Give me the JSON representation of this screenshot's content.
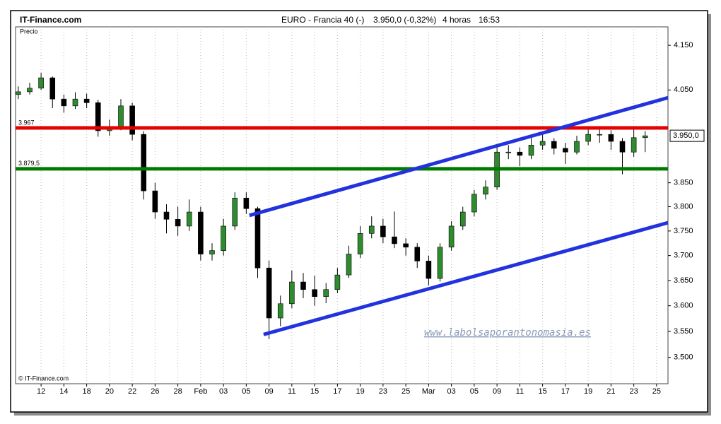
{
  "chart_data": {
    "type": "candlestick",
    "source": "IT-Finance.com",
    "title": "EURO - Francia 40 (-)",
    "price_change": "3.950,0 (-0,32%)",
    "timeframe": "4 horas",
    "time": "16:53",
    "y_label": "Precio",
    "copyright": "© IT-Finance.com",
    "watermark": "www.labolsaporantonomasia.es",
    "last_price_label": "3.950,0",
    "log_scale": true,
    "grid": "x",
    "up_color": "#2e8b2e",
    "down_color": "#000000",
    "ylim": [
      3450,
      4192
    ],
    "yticks": [
      {
        "value": 4150,
        "label": "4.150"
      },
      {
        "value": 4050,
        "label": "4.050"
      },
      {
        "value": 3850,
        "label": "3.850"
      },
      {
        "value": 3800,
        "label": "3.800"
      },
      {
        "value": 3750,
        "label": "3.750"
      },
      {
        "value": 3700,
        "label": "3.700"
      },
      {
        "value": 3650,
        "label": "3.650"
      },
      {
        "value": 3600,
        "label": "3.600"
      },
      {
        "value": 3550,
        "label": "3.550"
      },
      {
        "value": 3500,
        "label": "3.500"
      }
    ],
    "xlim": [
      -1.12,
      27.5
    ],
    "xticks": [
      {
        "value": 0,
        "label": "12"
      },
      {
        "value": 1,
        "label": "14"
      },
      {
        "value": 2,
        "label": "18"
      },
      {
        "value": 3,
        "label": "20"
      },
      {
        "value": 4,
        "label": "22"
      },
      {
        "value": 5,
        "label": "26"
      },
      {
        "value": 6,
        "label": "28"
      },
      {
        "value": 7,
        "label": "Feb"
      },
      {
        "value": 8,
        "label": "03"
      },
      {
        "value": 9,
        "label": "05"
      },
      {
        "value": 10,
        "label": "09"
      },
      {
        "value": 11,
        "label": "11"
      },
      {
        "value": 12,
        "label": "15"
      },
      {
        "value": 13,
        "label": "17"
      },
      {
        "value": 14,
        "label": "19"
      },
      {
        "value": 15,
        "label": "23"
      },
      {
        "value": 16,
        "label": "25"
      },
      {
        "value": 17,
        "label": "Mar"
      },
      {
        "value": 18,
        "label": "03"
      },
      {
        "value": 19,
        "label": "05"
      },
      {
        "value": 20,
        "label": "09"
      },
      {
        "value": 21,
        "label": "11"
      },
      {
        "value": 22,
        "label": "15"
      },
      {
        "value": 23,
        "label": "17"
      },
      {
        "value": 24,
        "label": "19"
      },
      {
        "value": 25,
        "label": "21"
      },
      {
        "value": 26,
        "label": "23"
      },
      {
        "value": 27,
        "label": "25"
      }
    ],
    "x": [
      -1,
      -0.5,
      0,
      0.5,
      1,
      1.5,
      2,
      2.5,
      3,
      3.5,
      4,
      4.5,
      5,
      5.5,
      6,
      6.5,
      7,
      7.5,
      8,
      8.5,
      9,
      9.5,
      10,
      10.5,
      11,
      11.5,
      12,
      12.5,
      13,
      13.5,
      14,
      14.5,
      15,
      15.5,
      16,
      16.5,
      17,
      17.5,
      18,
      18.5,
      19,
      19.5,
      20,
      20.5,
      21,
      21.5,
      22,
      22.5,
      23,
      23.5,
      24,
      24.5,
      25,
      25.5,
      26,
      26.5
    ],
    "open": [
      4040,
      4046,
      4054,
      4077,
      4030,
      4015,
      4030,
      4022,
      3961,
      3969,
      4015,
      3953,
      3833,
      3789,
      3774,
      3760,
      3789,
      3703,
      3710,
      3760,
      3818,
      3796,
      3675,
      3576,
      3604,
      3647,
      3632,
      3618,
      3632,
      3661,
      3703,
      3745,
      3760,
      3738,
      3724,
      3717,
      3689,
      3654,
      3717,
      3760,
      3789,
      3826,
      3841,
      3915,
      3915,
      3908,
      3930,
      3938,
      3923,
      3915,
      3938,
      3953,
      3953,
      3938,
      3915,
      3946
    ],
    "high": [
      4058,
      4066,
      4088,
      4080,
      4040,
      4045,
      4042,
      4028,
      3985,
      4030,
      4022,
      3960,
      3850,
      3805,
      3800,
      3815,
      3800,
      3725,
      3775,
      3830,
      3830,
      3800,
      3690,
      3620,
      3670,
      3665,
      3660,
      3645,
      3675,
      3720,
      3760,
      3780,
      3775,
      3790,
      3735,
      3725,
      3700,
      3725,
      3770,
      3800,
      3835,
      3855,
      3925,
      3930,
      3925,
      3945,
      3955,
      3945,
      3935,
      3950,
      3965,
      3965,
      3962,
      3945,
      3968,
      3960
    ],
    "low": [
      4030,
      4040,
      4050,
      4010,
      4000,
      4008,
      4010,
      3948,
      3950,
      3962,
      3940,
      3815,
      3775,
      3745,
      3740,
      3750,
      3690,
      3690,
      3700,
      3752,
      3785,
      3655,
      3535,
      3560,
      3595,
      3615,
      3600,
      3605,
      3625,
      3655,
      3695,
      3735,
      3725,
      3715,
      3700,
      3675,
      3640,
      3648,
      3710,
      3752,
      3780,
      3815,
      3835,
      3900,
      3885,
      3900,
      3920,
      3910,
      3890,
      3910,
      3930,
      3935,
      3920,
      3868,
      3905,
      3915
    ],
    "close": [
      4046,
      4054,
      4077,
      4030,
      4015,
      4030,
      4022,
      3961,
      3969,
      4015,
      3953,
      3833,
      3789,
      3774,
      3760,
      3789,
      3703,
      3710,
      3760,
      3818,
      3796,
      3675,
      3576,
      3604,
      3647,
      3632,
      3618,
      3632,
      3661,
      3703,
      3745,
      3760,
      3738,
      3724,
      3717,
      3689,
      3654,
      3717,
      3760,
      3789,
      3826,
      3841,
      3915,
      3915,
      3908,
      3930,
      3938,
      3923,
      3915,
      3938,
      3953,
      3953,
      3938,
      3915,
      3946,
      3950
    ],
    "levels": [
      {
        "value": 3967,
        "label": "3.967",
        "color": "#e60000"
      },
      {
        "value": 3879.5,
        "label": "3.879,5",
        "color": "#007a00"
      }
    ],
    "trendlines": [
      {
        "x": [
          9.14,
          27.5
        ],
        "values": [
          3782,
          4033
        ],
        "color": "#2233dd"
      },
      {
        "x": [
          9.76,
          27.5
        ],
        "values": [
          3544,
          3767
        ],
        "color": "#2233dd"
      }
    ]
  }
}
